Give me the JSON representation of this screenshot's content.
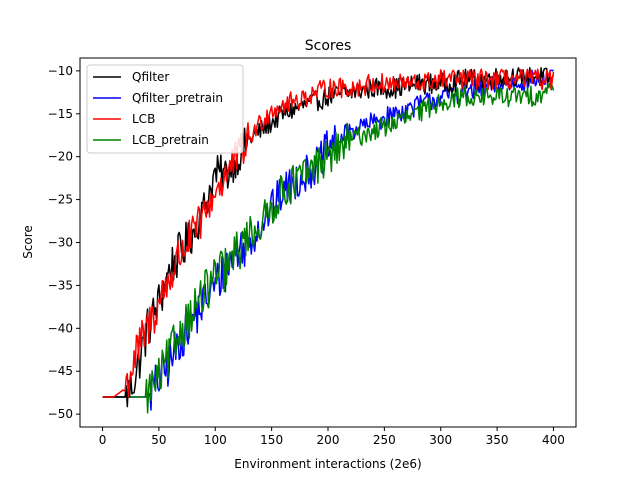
{
  "chart_data": {
    "type": "line",
    "title": "Scores",
    "xlabel": "Environment interactions (2e6)",
    "ylabel": "Score",
    "xlim": [
      -20,
      420
    ],
    "ylim": [
      -51.5,
      -8.5
    ],
    "xticks": [
      0,
      50,
      100,
      150,
      200,
      250,
      300,
      350,
      400
    ],
    "yticks": [
      -50,
      -45,
      -40,
      -35,
      -30,
      -25,
      -20,
      -15,
      -10
    ],
    "grid": false,
    "legend_position": "top-left",
    "series": [
      {
        "name": "Qfilter",
        "color": "#000000",
        "start": 20,
        "plateau_x": 100,
        "plateau_y": -21,
        "x": [
          0,
          10,
          20,
          25,
          30,
          40,
          50,
          60,
          70,
          80,
          90,
          100,
          110,
          120,
          130,
          140,
          150,
          160,
          170,
          180,
          190,
          200,
          220,
          240,
          260,
          280,
          300,
          320,
          340,
          360,
          380,
          400
        ],
        "y": [
          -48,
          -48,
          -48,
          -47,
          -45,
          -40,
          -37,
          -33,
          -31,
          -29,
          -26,
          -22,
          -22,
          -20,
          -18,
          -17,
          -16,
          -15,
          -14.5,
          -14,
          -13.5,
          -13,
          -12.5,
          -12,
          -12,
          -11.5,
          -11.5,
          -11,
          -11,
          -10.5,
          -10.5,
          -11
        ]
      },
      {
        "name": "Qfilter_pretrain",
        "color": "#0000ff",
        "start": 42,
        "x": [
          0,
          10,
          20,
          30,
          40,
          45,
          50,
          60,
          70,
          80,
          90,
          100,
          110,
          120,
          130,
          140,
          150,
          160,
          170,
          180,
          190,
          200,
          220,
          240,
          260,
          280,
          300,
          320,
          340,
          360,
          380,
          400
        ],
        "y": [
          -48,
          -48,
          -48,
          -48,
          -48,
          -47,
          -46,
          -44,
          -41,
          -39,
          -37,
          -35,
          -33,
          -31,
          -30,
          -28,
          -26,
          -24,
          -23,
          -22,
          -21,
          -19,
          -17,
          -16,
          -15,
          -14,
          -13,
          -12.5,
          -12,
          -11.5,
          -11,
          -11
        ]
      },
      {
        "name": "LCB",
        "color": "#ff0000",
        "start": 18,
        "x": [
          0,
          10,
          20,
          25,
          30,
          40,
          50,
          60,
          70,
          80,
          90,
          100,
          110,
          120,
          130,
          140,
          150,
          160,
          170,
          180,
          190,
          200,
          220,
          240,
          260,
          280,
          300,
          320,
          340,
          360,
          380,
          400
        ],
        "y": [
          -48,
          -48,
          -47,
          -45,
          -43,
          -40,
          -37,
          -34,
          -31,
          -29,
          -27,
          -24,
          -22,
          -20,
          -18,
          -16,
          -14.5,
          -14,
          -13.5,
          -13,
          -12.5,
          -12,
          -12,
          -11.5,
          -11.5,
          -11.5,
          -11,
          -11,
          -11,
          -11,
          -11,
          -11
        ]
      },
      {
        "name": "LCB_pretrain",
        "color": "#008000",
        "start": 38,
        "x": [
          0,
          10,
          20,
          30,
          38,
          45,
          50,
          60,
          70,
          80,
          90,
          100,
          110,
          120,
          130,
          140,
          150,
          160,
          170,
          180,
          190,
          200,
          220,
          240,
          260,
          280,
          300,
          320,
          340,
          360,
          380,
          400
        ],
        "y": [
          -48,
          -48,
          -48,
          -48,
          -48,
          -46.5,
          -46,
          -43,
          -40,
          -38,
          -36,
          -34,
          -33,
          -31,
          -29,
          -28,
          -26,
          -24,
          -23,
          -22,
          -21,
          -20,
          -18,
          -17,
          -16,
          -15,
          -13.5,
          -13,
          -13,
          -13,
          -13,
          -12
        ]
      }
    ]
  }
}
